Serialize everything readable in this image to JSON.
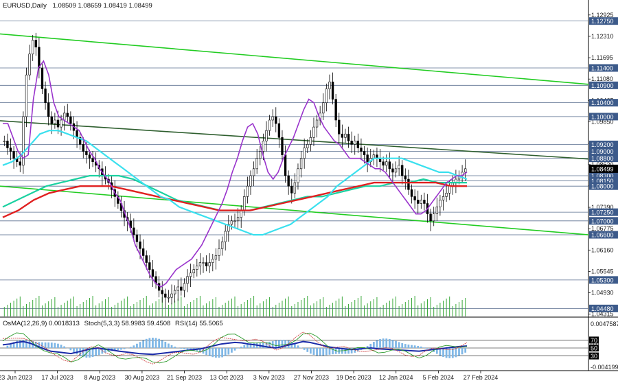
{
  "header": {
    "symbol": "EURUSD,Daily",
    "ohlc": "1.08509 1.08659 1.08419 1.08499"
  },
  "indicator_header": {
    "osma": "OsMA(12,26,9) 0.0018313",
    "stoch": "Stoch(5,3,3) 58.9983 59.4508",
    "rsi": "RSI(14) 55.5065"
  },
  "chart_data": {
    "type": "candlestick",
    "price_axis": {
      "min": 1.0431,
      "max": 1.13,
      "ticks": [
        "1.12925",
        "1.12310",
        "1.11695",
        "1.11080",
        "1.10465",
        "1.09850",
        "1.09235",
        "1.08620",
        "1.08005",
        "1.07390",
        "1.06775",
        "1.06160",
        "1.05545",
        "1.04930",
        "1.04315"
      ]
    },
    "date_labels": [
      "23 Jun 2023",
      "17 Jul 2023",
      "8 Aug 2023",
      "30 Aug 2023",
      "21 Sep 2023",
      "13 Oct 2023",
      "3 Nov 2023",
      "27 Nov 2023",
      "19 Dec 2023",
      "12 Jan 2024",
      "5 Feb 2024",
      "27 Feb 2024"
    ],
    "levels": [
      {
        "label": "1.12750",
        "value": 1.1275
      },
      {
        "label": "1.11400",
        "value": 1.114
      },
      {
        "label": "1.10900",
        "value": 1.109
      },
      {
        "label": "1.10400",
        "value": 1.104
      },
      {
        "label": "1.10000",
        "value": 1.1
      },
      {
        "label": "1.09200",
        "value": 1.092
      },
      {
        "label": "1.09000",
        "value": 1.09
      },
      {
        "label": "1.08800",
        "value": 1.088
      },
      {
        "label": "1.08300",
        "value": 1.083
      },
      {
        "label": "1.08150",
        "value": 1.0815
      },
      {
        "label": "1.08000",
        "value": 1.08
      },
      {
        "label": "1.07250",
        "value": 1.0725
      },
      {
        "label": "1.07000",
        "value": 1.07
      },
      {
        "label": "1.06600",
        "value": 1.066
      },
      {
        "label": "1.05300",
        "value": 1.053
      },
      {
        "label": "1.04480",
        "value": 1.0448
      }
    ],
    "current_price": {
      "label": "1.08499",
      "value": 1.08499
    },
    "extra_price_labels": [
      {
        "label": "1.08620",
        "value": 1.0862
      },
      {
        "label": "1.07390",
        "value": 1.0739
      },
      {
        "label": "1.06775",
        "value": 1.06775
      }
    ],
    "closes": [
      1.093,
      1.091,
      1.09,
      1.088,
      1.087,
      1.086,
      1.1,
      1.112,
      1.118,
      1.122,
      1.12,
      1.114,
      1.108,
      1.104,
      1.1,
      1.098,
      1.099,
      1.097,
      1.099,
      1.101,
      1.1,
      1.098,
      1.096,
      1.094,
      1.092,
      1.09,
      1.089,
      1.088,
      1.087,
      1.086,
      1.085,
      1.083,
      1.082,
      1.081,
      1.079,
      1.077,
      1.075,
      1.073,
      1.071,
      1.07,
      1.068,
      1.066,
      1.064,
      1.062,
      1.06,
      1.058,
      1.056,
      1.054,
      1.052,
      1.05,
      1.049,
      1.048,
      1.048,
      1.049,
      1.05,
      1.051,
      1.05,
      1.052,
      1.054,
      1.055,
      1.056,
      1.057,
      1.058,
      1.058,
      1.057,
      1.058,
      1.059,
      1.06,
      1.062,
      1.064,
      1.067,
      1.069,
      1.07,
      1.07,
      1.071,
      1.073,
      1.077,
      1.08,
      1.083,
      1.085,
      1.088,
      1.09,
      1.093,
      1.096,
      1.099,
      1.1,
      1.098,
      1.094,
      1.089,
      1.083,
      1.08,
      1.078,
      1.081,
      1.085,
      1.088,
      1.091,
      1.092,
      1.094,
      1.097,
      1.099,
      1.101,
      1.104,
      1.108,
      1.11,
      1.105,
      1.099,
      1.095,
      1.094,
      1.095,
      1.093,
      1.092,
      1.093,
      1.091,
      1.09,
      1.089,
      1.087,
      1.088,
      1.089,
      1.088,
      1.087,
      1.086,
      1.087,
      1.085,
      1.084,
      1.085,
      1.086,
      1.083,
      1.082,
      1.079,
      1.077,
      1.076,
      1.075,
      1.076,
      1.075,
      1.072,
      1.07,
      1.072,
      1.074,
      1.076,
      1.077,
      1.078,
      1.08,
      1.081,
      1.082,
      1.083,
      1.084,
      1.085
    ],
    "ma_fast": [
      1.098,
      1.098,
      1.094,
      1.09,
      1.088,
      1.089,
      1.105,
      1.114,
      1.116,
      1.112,
      1.104,
      1.1,
      1.099,
      1.098,
      1.097,
      1.096,
      1.093,
      1.09,
      1.088,
      1.085,
      1.083,
      1.081,
      1.078,
      1.076,
      1.072,
      1.068,
      1.063,
      1.06,
      1.057,
      1.054,
      1.052,
      1.051,
      1.052,
      1.054,
      1.056,
      1.057,
      1.058,
      1.059,
      1.061,
      1.063,
      1.066,
      1.069,
      1.072,
      1.075,
      1.079,
      1.084,
      1.088,
      1.093,
      1.097,
      1.098,
      1.095,
      1.089,
      1.084,
      1.082,
      1.084,
      1.088,
      1.091,
      1.094,
      1.098,
      1.102,
      1.105,
      1.104,
      1.1,
      1.097,
      1.095,
      1.093,
      1.092,
      1.09,
      1.088,
      1.088,
      1.088,
      1.087,
      1.086,
      1.085,
      1.085,
      1.084,
      1.082,
      1.08,
      1.078,
      1.076,
      1.074,
      1.072,
      1.072,
      1.073,
      1.075,
      1.077,
      1.079,
      1.081,
      1.082,
      1.083,
      1.083,
      1.084
    ],
    "ma_mid": [
      1.086,
      1.087,
      1.089,
      1.092,
      1.095,
      1.096,
      1.096,
      1.095,
      1.094,
      1.093,
      1.091,
      1.089,
      1.087,
      1.085,
      1.083,
      1.081,
      1.079,
      1.077,
      1.076,
      1.074,
      1.073,
      1.072,
      1.071,
      1.07,
      1.069,
      1.068,
      1.067,
      1.066,
      1.066,
      1.067,
      1.068,
      1.069,
      1.071,
      1.073,
      1.075,
      1.077,
      1.08,
      1.082,
      1.084,
      1.086,
      1.088,
      1.088,
      1.088,
      1.088,
      1.087,
      1.086,
      1.085,
      1.084,
      1.084,
      1.083,
      1.082
    ],
    "ma_slow": [
      1.074,
      1.076,
      1.078,
      1.08,
      1.081,
      1.082,
      1.083,
      1.083,
      1.083,
      1.082,
      1.08,
      1.078,
      1.076,
      1.075,
      1.074,
      1.073,
      1.073,
      1.073,
      1.074,
      1.075,
      1.076,
      1.077,
      1.077,
      1.078,
      1.079,
      1.08,
      1.08,
      1.081,
      1.081,
      1.082,
      1.081,
      1.081,
      1.081
    ],
    "ema200": [
      1.071,
      1.073,
      1.076,
      1.078,
      1.079,
      1.08,
      1.08,
      1.08,
      1.079,
      1.078,
      1.077,
      1.076,
      1.075,
      1.074,
      1.073,
      1.073,
      1.073,
      1.074,
      1.075,
      1.076,
      1.077,
      1.078,
      1.079,
      1.08,
      1.081,
      1.081,
      1.081,
      1.081,
      1.081,
      1.08,
      1.08
    ],
    "channel_lines": [
      {
        "from": [
          0,
          1.1238
        ],
        "to": [
          1,
          1.1093
        ],
        "color": "green"
      },
      {
        "from": [
          0,
          1.0988
        ],
        "to": [
          1,
          1.0878
        ],
        "color": "darkgreen"
      },
      {
        "from": [
          0,
          1.08
        ],
        "to": [
          1,
          1.066
        ],
        "color": "green"
      }
    ],
    "oscillator": {
      "overbought_label": "70",
      "mid_label": "50",
      "oversold_label": "30",
      "axis_ticks": [
        "0.0047587",
        "0.0",
        "-0.0041994"
      ],
      "rsi": [
        58,
        60,
        64,
        66,
        62,
        55,
        48,
        42,
        40,
        38,
        36,
        40,
        44,
        48,
        50,
        47,
        45,
        42,
        40,
        38,
        36,
        35,
        34,
        36,
        38,
        40,
        42,
        44,
        46,
        48,
        52,
        56,
        60,
        62,
        64,
        63,
        60,
        58,
        55,
        52,
        50,
        54,
        58,
        62,
        66,
        64,
        60,
        56,
        52,
        50,
        48,
        46,
        47,
        49,
        50,
        48,
        47,
        46,
        45,
        44,
        43,
        42,
        44,
        46,
        48,
        50,
        52,
        54,
        55
      ]
    }
  }
}
